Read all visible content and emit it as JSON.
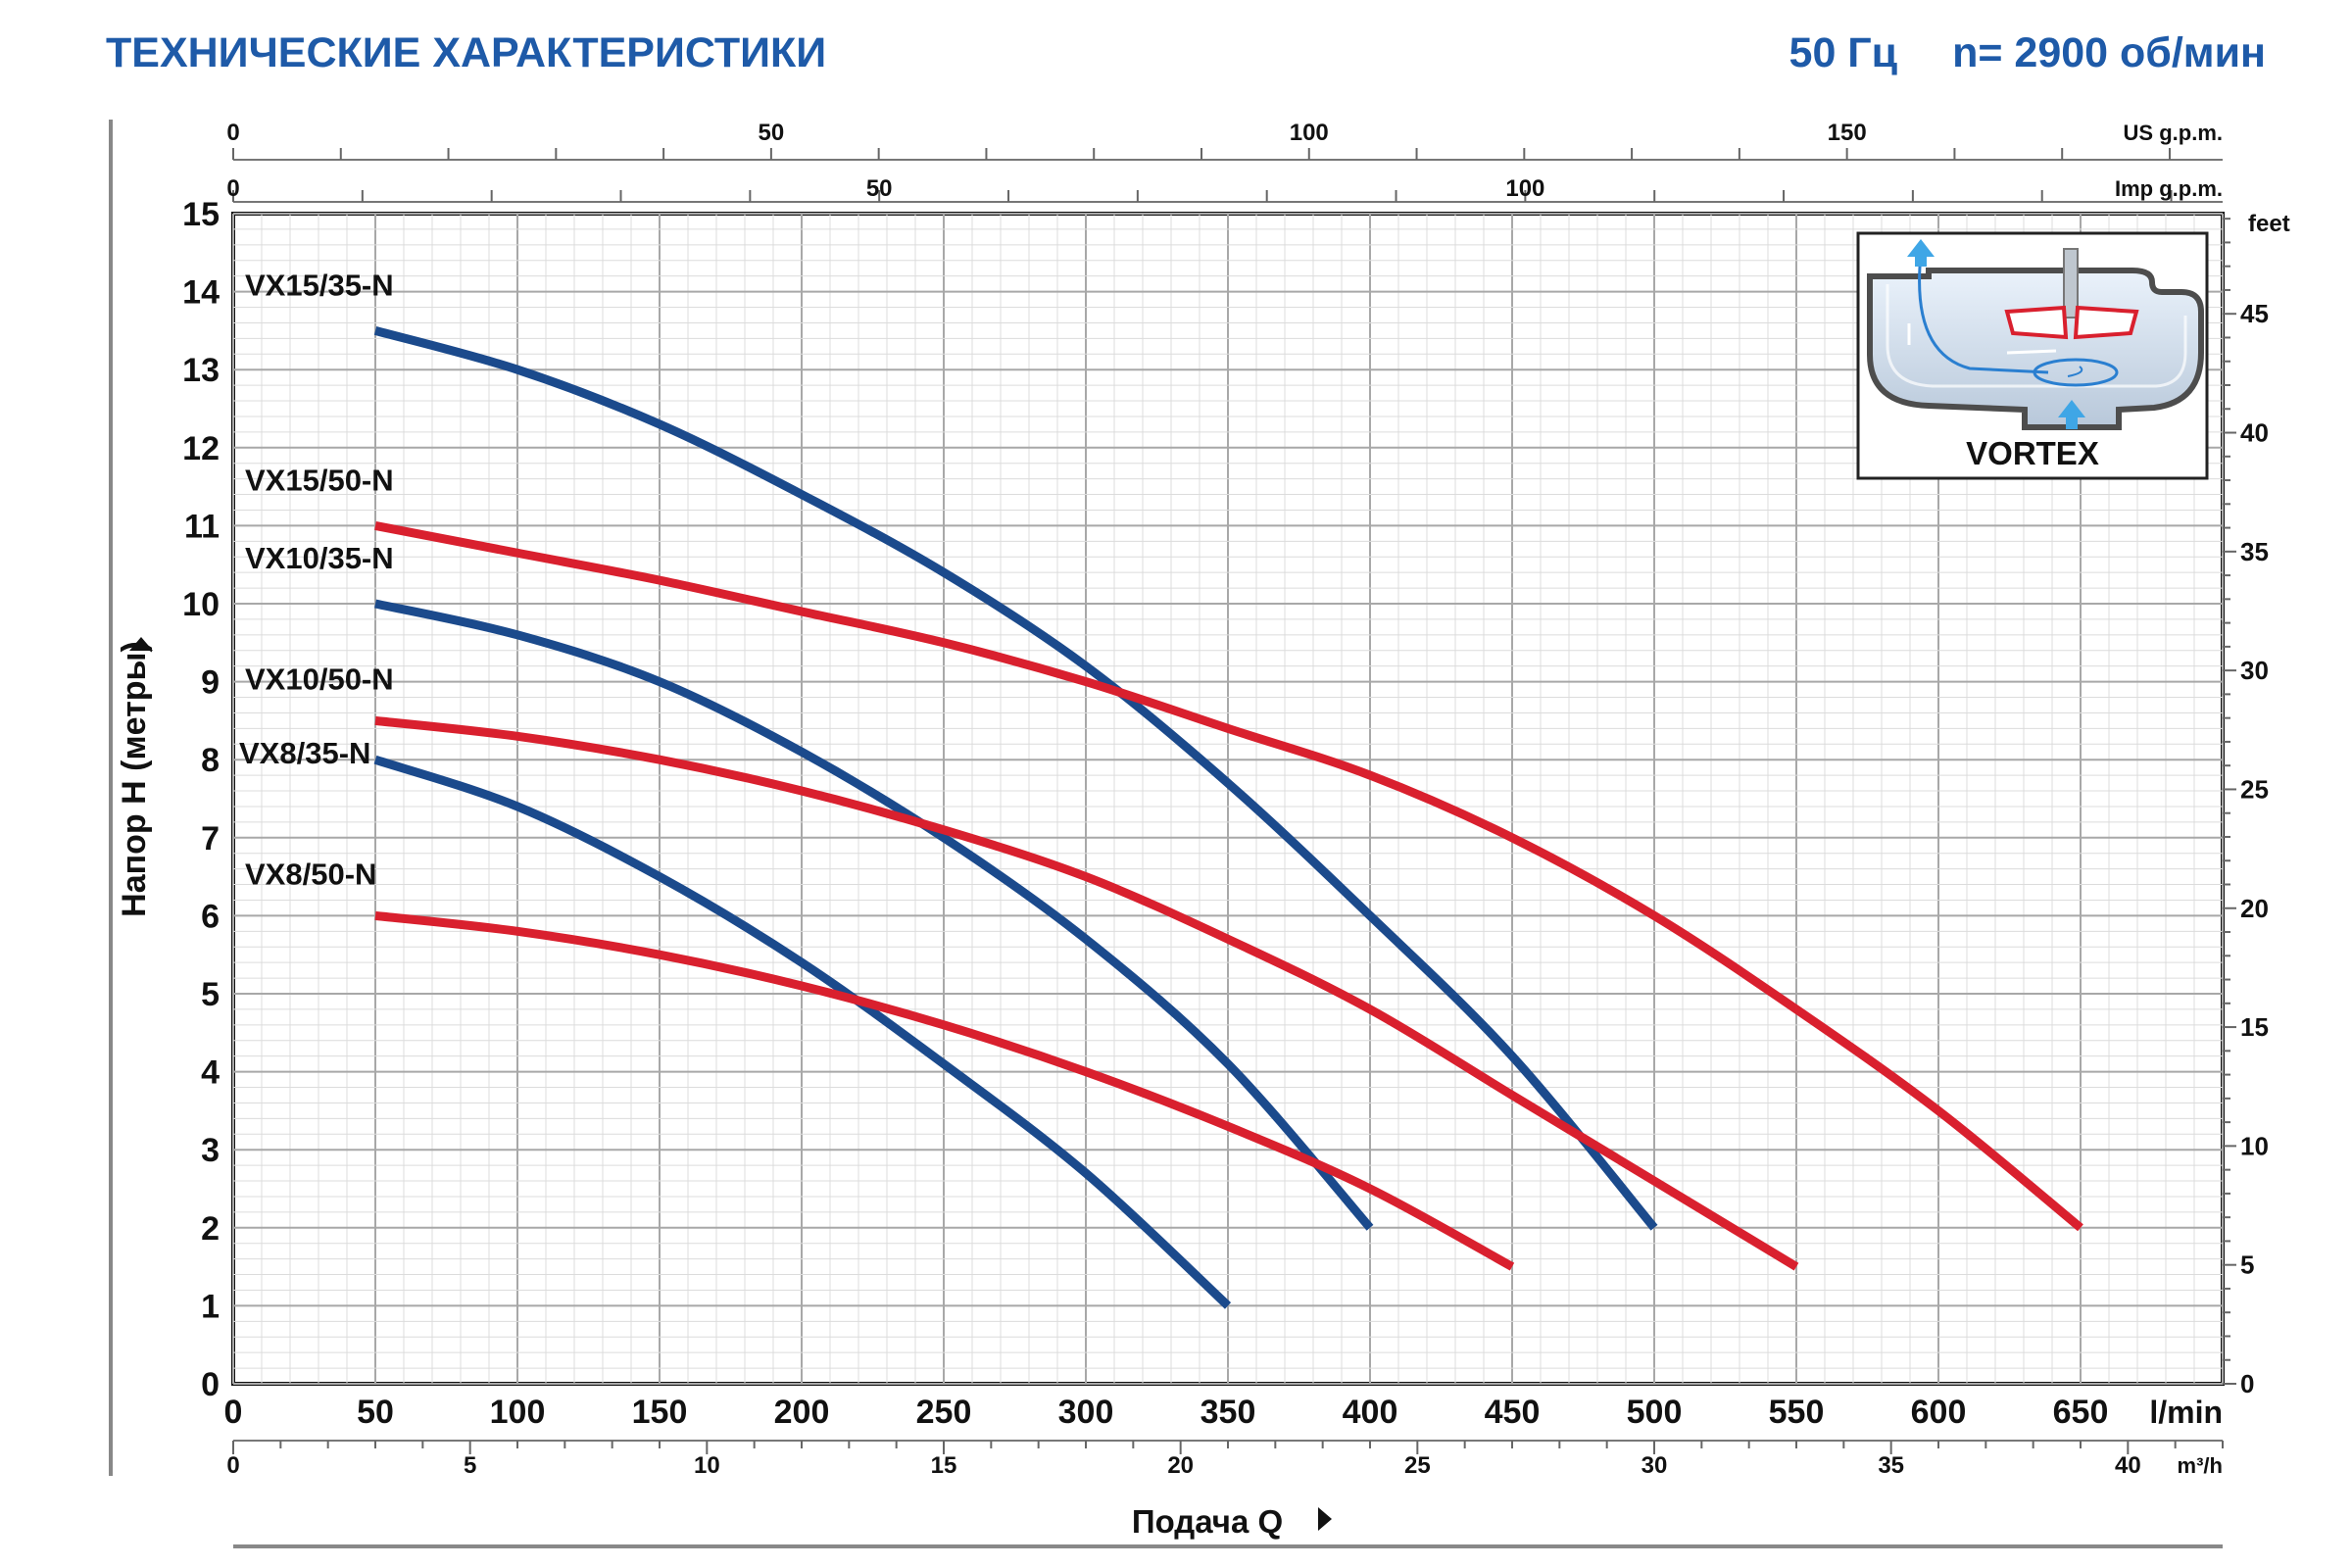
{
  "header": {
    "title": "ТЕХНИЧЕСКИЕ ХАРАКТЕРИСТИКИ",
    "frequency": "50 Гц",
    "speed": "n= 2900 об/мин"
  },
  "inset": {
    "label": "VORTEX",
    "icon": "vortex-impeller-diagram-icon"
  },
  "chart_data": {
    "type": "line",
    "title": "ТЕХНИЧЕСКИЕ ХАРАКТЕРИСТИКИ",
    "xlabel": "Подача Q",
    "ylabel": "Напор H (метры)",
    "xlim": [
      0,
      700
    ],
    "ylim": [
      0,
      15
    ],
    "grid": true,
    "x_unit": "l/min",
    "y_right_unit": "feet",
    "x_ticks": [
      0,
      50,
      100,
      150,
      200,
      250,
      300,
      350,
      400,
      450,
      500,
      550,
      600,
      650
    ],
    "y_ticks": [
      0,
      1,
      2,
      3,
      4,
      5,
      6,
      7,
      8,
      9,
      10,
      11,
      12,
      13,
      14,
      15
    ],
    "secondary_axes": {
      "us_gpm": {
        "unit": "US g.p.m.",
        "ticks": [
          0,
          50,
          100,
          150
        ]
      },
      "imp_gpm": {
        "unit": "Imp g.p.m.",
        "ticks": [
          0,
          50,
          100
        ]
      },
      "m3h": {
        "unit": "m³/h",
        "ticks": [
          0,
          5,
          10,
          15,
          20,
          25,
          30,
          35,
          40
        ]
      },
      "feet": {
        "unit": "feet",
        "ticks": [
          0,
          5,
          10,
          15,
          20,
          25,
          30,
          35,
          40,
          45
        ]
      }
    },
    "series": [
      {
        "name": "VX15/35-N",
        "color": "#1b4a8c",
        "x": [
          50,
          100,
          150,
          200,
          250,
          300,
          350,
          400,
          450,
          500
        ],
        "y": [
          13.5,
          13.0,
          12.3,
          11.4,
          10.4,
          9.2,
          7.7,
          6.0,
          4.2,
          2.0
        ]
      },
      {
        "name": "VX15/50-N",
        "color": "#d9202e",
        "x": [
          50,
          100,
          150,
          200,
          250,
          300,
          350,
          400,
          450,
          500,
          550,
          600,
          650
        ],
        "y": [
          11.0,
          10.65,
          10.3,
          9.9,
          9.5,
          9.0,
          8.4,
          7.8,
          7.0,
          6.0,
          4.8,
          3.5,
          2.0
        ]
      },
      {
        "name": "VX10/35-N",
        "color": "#1b4a8c",
        "x": [
          50,
          100,
          150,
          200,
          250,
          300,
          350,
          400
        ],
        "y": [
          10.0,
          9.6,
          9.0,
          8.1,
          7.0,
          5.7,
          4.1,
          2.0
        ]
      },
      {
        "name": "VX10/50-N",
        "color": "#d9202e",
        "x": [
          50,
          100,
          150,
          200,
          250,
          300,
          350,
          400,
          450,
          500,
          550
        ],
        "y": [
          8.5,
          8.3,
          8.0,
          7.6,
          7.1,
          6.5,
          5.7,
          4.8,
          3.7,
          2.6,
          1.5
        ]
      },
      {
        "name": "VX8/35-N",
        "color": "#1b4a8c",
        "x": [
          50,
          100,
          150,
          200,
          250,
          300,
          350
        ],
        "y": [
          8.0,
          7.4,
          6.5,
          5.4,
          4.1,
          2.7,
          1.0
        ]
      },
      {
        "name": "VX8/50-N",
        "color": "#d9202e",
        "x": [
          50,
          100,
          150,
          200,
          250,
          300,
          350,
          400,
          450
        ],
        "y": [
          6.0,
          5.8,
          5.5,
          5.1,
          4.6,
          4.0,
          3.3,
          2.5,
          1.5
        ]
      }
    ]
  }
}
